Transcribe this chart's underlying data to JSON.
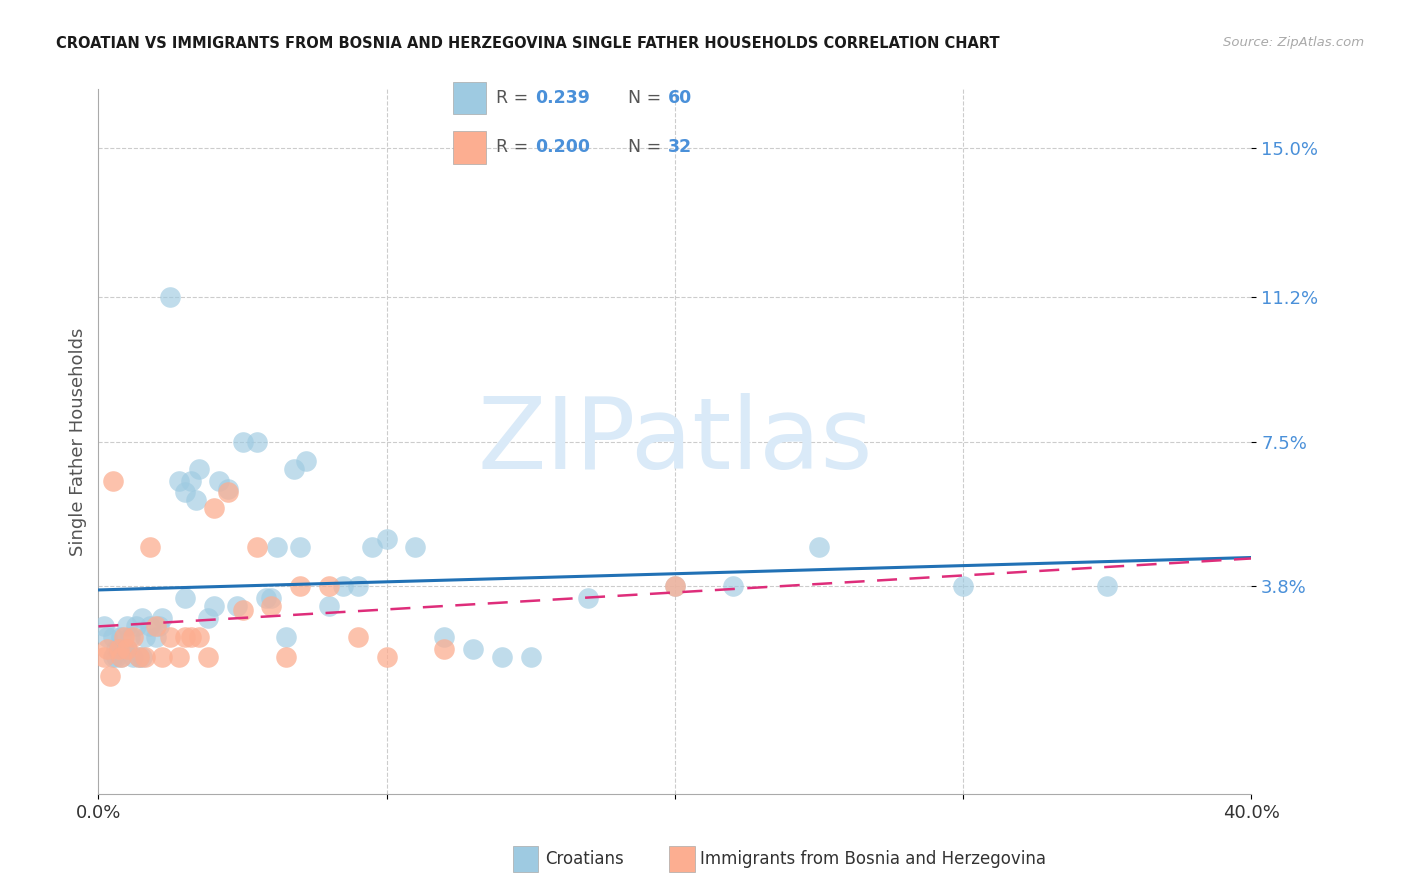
{
  "title": "CROATIAN VS IMMIGRANTS FROM BOSNIA AND HERZEGOVINA SINGLE FATHER HOUSEHOLDS CORRELATION CHART",
  "source": "Source: ZipAtlas.com",
  "ylabel": "Single Father Households",
  "xlim": [
    0.0,
    0.4
  ],
  "ylim": [
    -0.015,
    0.165
  ],
  "yticks": [
    0.038,
    0.075,
    0.112,
    0.15
  ],
  "ytick_labels": [
    "3.8%",
    "7.5%",
    "11.2%",
    "15.0%"
  ],
  "xtick_positions": [
    0.0,
    0.1,
    0.2,
    0.3,
    0.4
  ],
  "xtick_labels": [
    "0.0%",
    "",
    "",
    "",
    "40.0%"
  ],
  "blue_scatter_color": "#9ecae1",
  "pink_scatter_color": "#fcae91",
  "blue_line_color": "#2171b5",
  "pink_line_color": "#de2d7a",
  "legend_blue_box": "#9ecae1",
  "legend_pink_box": "#fcae91",
  "watermark_color": "#daeaf8",
  "croatians_x": [
    0.002,
    0.003,
    0.005,
    0.005,
    0.006,
    0.006,
    0.007,
    0.008,
    0.008,
    0.009,
    0.01,
    0.01,
    0.011,
    0.012,
    0.013,
    0.014,
    0.015,
    0.015,
    0.016,
    0.018,
    0.02,
    0.021,
    0.022,
    0.025,
    0.028,
    0.03,
    0.03,
    0.032,
    0.034,
    0.035,
    0.038,
    0.04,
    0.042,
    0.045,
    0.048,
    0.05,
    0.055,
    0.058,
    0.06,
    0.062,
    0.065,
    0.068,
    0.07,
    0.072,
    0.08,
    0.085,
    0.09,
    0.095,
    0.1,
    0.11,
    0.12,
    0.13,
    0.14,
    0.15,
    0.17,
    0.2,
    0.22,
    0.25,
    0.3,
    0.35
  ],
  "croatians_y": [
    0.028,
    0.025,
    0.025,
    0.02,
    0.022,
    0.02,
    0.022,
    0.025,
    0.02,
    0.022,
    0.028,
    0.022,
    0.025,
    0.02,
    0.028,
    0.02,
    0.02,
    0.03,
    0.025,
    0.028,
    0.025,
    0.028,
    0.03,
    0.112,
    0.065,
    0.062,
    0.035,
    0.065,
    0.06,
    0.068,
    0.03,
    0.033,
    0.065,
    0.063,
    0.033,
    0.075,
    0.075,
    0.035,
    0.035,
    0.048,
    0.025,
    0.068,
    0.048,
    0.07,
    0.033,
    0.038,
    0.038,
    0.048,
    0.05,
    0.048,
    0.025,
    0.022,
    0.02,
    0.02,
    0.035,
    0.038,
    0.038,
    0.048,
    0.038,
    0.038
  ],
  "bosnians_x": [
    0.002,
    0.003,
    0.004,
    0.005,
    0.007,
    0.008,
    0.009,
    0.01,
    0.012,
    0.014,
    0.016,
    0.018,
    0.02,
    0.022,
    0.025,
    0.028,
    0.03,
    0.032,
    0.035,
    0.038,
    0.04,
    0.045,
    0.05,
    0.055,
    0.06,
    0.065,
    0.07,
    0.08,
    0.09,
    0.1,
    0.12,
    0.2
  ],
  "bosnians_y": [
    0.02,
    0.022,
    0.015,
    0.065,
    0.022,
    0.02,
    0.025,
    0.022,
    0.025,
    0.02,
    0.02,
    0.048,
    0.028,
    0.02,
    0.025,
    0.02,
    0.025,
    0.025,
    0.025,
    0.02,
    0.058,
    0.062,
    0.032,
    0.048,
    0.033,
    0.02,
    0.038,
    0.038,
    0.025,
    0.02,
    0.022,
    0.038
  ]
}
